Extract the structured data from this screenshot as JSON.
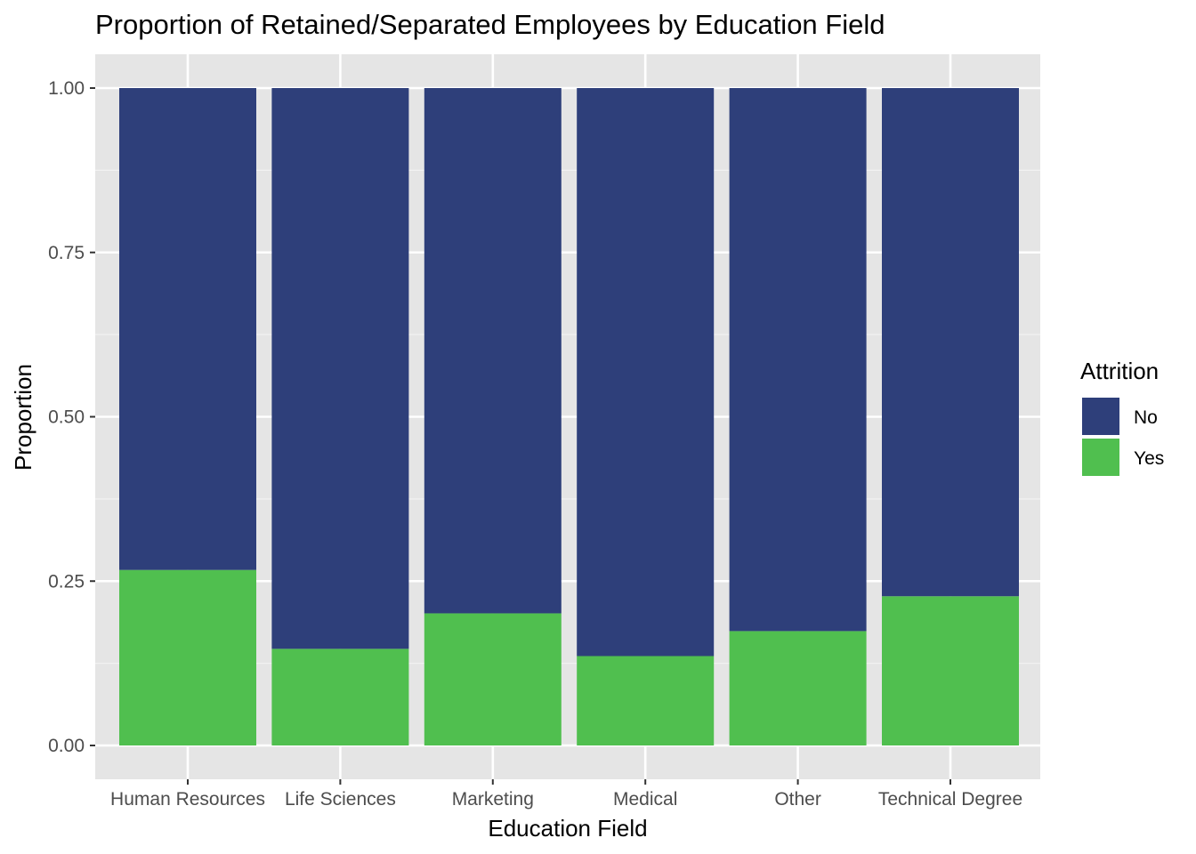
{
  "chart_data": {
    "type": "bar",
    "stacked": true,
    "title": "Proportion of Retained/Separated Employees by Education Field",
    "xlabel": "Education Field",
    "ylabel": "Proportion",
    "categories": [
      "Human Resources",
      "Life Sciences",
      "Marketing",
      "Medical",
      "Other",
      "Technical Degree"
    ],
    "series": [
      {
        "name": "No",
        "color": "#2e3f7a",
        "values": [
          0.733,
          0.853,
          0.799,
          0.864,
          0.826,
          0.773
        ]
      },
      {
        "name": "Yes",
        "color": "#50bf4f",
        "values": [
          0.267,
          0.147,
          0.201,
          0.136,
          0.174,
          0.227
        ]
      }
    ],
    "ylim": [
      0,
      1
    ],
    "yticks": [
      "0.00",
      "0.25",
      "0.50",
      "0.75",
      "1.00"
    ],
    "ytick_values": [
      0,
      0.25,
      0.5,
      0.75,
      1.0
    ],
    "legend": {
      "title": "Attrition",
      "placement": "right"
    },
    "grid": true,
    "panel_color": "#e5e5e5"
  }
}
